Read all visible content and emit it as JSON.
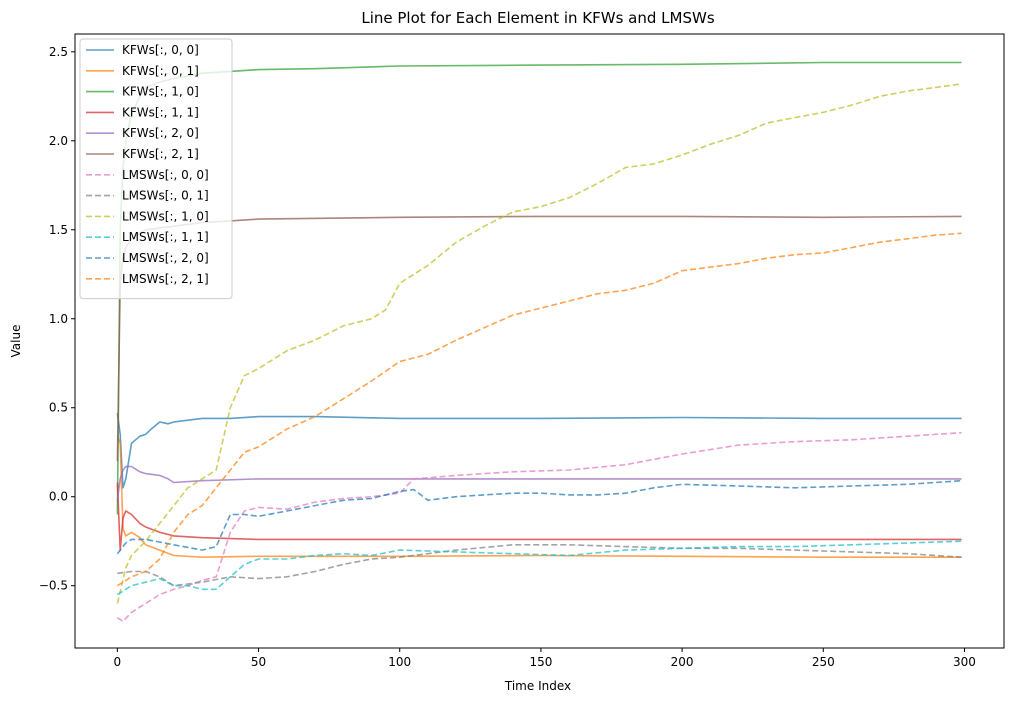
{
  "chart_data": {
    "type": "line",
    "title": "Line Plot for Each Element in KFWs and LMSWs",
    "xlabel": "Time Index",
    "ylabel": "Value",
    "xlim": [
      -15,
      314
    ],
    "ylim": [
      -0.85,
      2.6
    ],
    "xticks": [
      0,
      50,
      100,
      150,
      200,
      250,
      300
    ],
    "yticks": [
      -0.5,
      0.0,
      0.5,
      1.0,
      1.5,
      2.0,
      2.5
    ],
    "xtick_labels": [
      "0",
      "50",
      "100",
      "150",
      "200",
      "250",
      "300"
    ],
    "ytick_labels": [
      "−0.5",
      "0.0",
      "0.5",
      "1.0",
      "1.5",
      "2.0",
      "2.5"
    ],
    "legend_position": "upper-left",
    "grid": false,
    "series": [
      {
        "name": "KFWs[:, 0, 0]",
        "color": "#1f77b4",
        "style": "solid",
        "points": [
          [
            0,
            0.47
          ],
          [
            1,
            0.35
          ],
          [
            2,
            0.05
          ],
          [
            3,
            0.1
          ],
          [
            5,
            0.3
          ],
          [
            8,
            0.34
          ],
          [
            10,
            0.35
          ],
          [
            12,
            0.38
          ],
          [
            15,
            0.42
          ],
          [
            18,
            0.41
          ],
          [
            20,
            0.42
          ],
          [
            25,
            0.43
          ],
          [
            30,
            0.44
          ],
          [
            40,
            0.44
          ],
          [
            50,
            0.45
          ],
          [
            70,
            0.45
          ],
          [
            100,
            0.44
          ],
          [
            150,
            0.44
          ],
          [
            200,
            0.445
          ],
          [
            250,
            0.44
          ],
          [
            299,
            0.44
          ]
        ]
      },
      {
        "name": "KFWs[:, 0, 1]",
        "color": "#ff7f0e",
        "style": "solid",
        "points": [
          [
            0,
            0.34
          ],
          [
            1,
            0.3
          ],
          [
            2,
            -0.18
          ],
          [
            3,
            -0.22
          ],
          [
            5,
            -0.2
          ],
          [
            8,
            -0.23
          ],
          [
            10,
            -0.27
          ],
          [
            15,
            -0.3
          ],
          [
            20,
            -0.33
          ],
          [
            30,
            -0.34
          ],
          [
            50,
            -0.335
          ],
          [
            100,
            -0.335
          ],
          [
            150,
            -0.33
          ],
          [
            200,
            -0.335
          ],
          [
            250,
            -0.34
          ],
          [
            299,
            -0.34
          ]
        ]
      },
      {
        "name": "KFWs[:, 1, 0]",
        "color": "#2ca02c",
        "style": "solid",
        "points": [
          [
            0,
            -0.1
          ],
          [
            1,
            1.5
          ],
          [
            2,
            1.85
          ],
          [
            3,
            2.0
          ],
          [
            5,
            2.15
          ],
          [
            8,
            2.25
          ],
          [
            10,
            2.3
          ],
          [
            15,
            2.33
          ],
          [
            20,
            2.35
          ],
          [
            30,
            2.38
          ],
          [
            40,
            2.39
          ],
          [
            50,
            2.4
          ],
          [
            70,
            2.405
          ],
          [
            100,
            2.42
          ],
          [
            150,
            2.425
          ],
          [
            200,
            2.43
          ],
          [
            250,
            2.44
          ],
          [
            299,
            2.44
          ]
        ]
      },
      {
        "name": "KFWs[:, 1, 1]",
        "color": "#d62728",
        "style": "solid",
        "points": [
          [
            0,
            0.08
          ],
          [
            1,
            -0.3
          ],
          [
            2,
            -0.12
          ],
          [
            3,
            -0.08
          ],
          [
            5,
            -0.1
          ],
          [
            8,
            -0.15
          ],
          [
            10,
            -0.17
          ],
          [
            15,
            -0.2
          ],
          [
            20,
            -0.22
          ],
          [
            30,
            -0.23
          ],
          [
            50,
            -0.24
          ],
          [
            100,
            -0.24
          ],
          [
            150,
            -0.24
          ],
          [
            200,
            -0.24
          ],
          [
            250,
            -0.24
          ],
          [
            299,
            -0.24
          ]
        ]
      },
      {
        "name": "KFWs[:, 2, 0]",
        "color": "#9467bd",
        "style": "solid",
        "points": [
          [
            0,
            -0.02
          ],
          [
            1,
            0.1
          ],
          [
            2,
            0.15
          ],
          [
            3,
            0.17
          ],
          [
            5,
            0.17
          ],
          [
            8,
            0.14
          ],
          [
            10,
            0.13
          ],
          [
            15,
            0.12
          ],
          [
            18,
            0.1
          ],
          [
            20,
            0.08
          ],
          [
            30,
            0.09
          ],
          [
            50,
            0.1
          ],
          [
            100,
            0.1
          ],
          [
            150,
            0.1
          ],
          [
            200,
            0.1
          ],
          [
            250,
            0.1
          ],
          [
            299,
            0.1
          ]
        ]
      },
      {
        "name": "KFWs[:, 2, 1]",
        "color": "#8c564b",
        "style": "solid",
        "points": [
          [
            0,
            0.2
          ],
          [
            1,
            1.2
          ],
          [
            2,
            1.35
          ],
          [
            3,
            1.4
          ],
          [
            5,
            1.45
          ],
          [
            8,
            1.48
          ],
          [
            10,
            1.5
          ],
          [
            20,
            1.52
          ],
          [
            30,
            1.54
          ],
          [
            40,
            1.55
          ],
          [
            50,
            1.56
          ],
          [
            100,
            1.57
          ],
          [
            150,
            1.575
          ],
          [
            200,
            1.575
          ],
          [
            250,
            1.57
          ],
          [
            299,
            1.575
          ]
        ]
      },
      {
        "name": "LMSWs[:, 0, 0]",
        "color": "#e377c2",
        "style": "dashed",
        "points": [
          [
            0,
            -0.68
          ],
          [
            2,
            -0.7
          ],
          [
            5,
            -0.65
          ],
          [
            10,
            -0.6
          ],
          [
            15,
            -0.55
          ],
          [
            20,
            -0.52
          ],
          [
            25,
            -0.5
          ],
          [
            30,
            -0.47
          ],
          [
            35,
            -0.45
          ],
          [
            40,
            -0.2
          ],
          [
            45,
            -0.08
          ],
          [
            50,
            -0.06
          ],
          [
            60,
            -0.07
          ],
          [
            70,
            -0.03
          ],
          [
            80,
            -0.01
          ],
          [
            90,
            0.0
          ],
          [
            100,
            0.02
          ],
          [
            105,
            0.1
          ],
          [
            120,
            0.12
          ],
          [
            140,
            0.14
          ],
          [
            160,
            0.15
          ],
          [
            180,
            0.18
          ],
          [
            200,
            0.24
          ],
          [
            220,
            0.29
          ],
          [
            240,
            0.31
          ],
          [
            260,
            0.32
          ],
          [
            280,
            0.34
          ],
          [
            299,
            0.36
          ]
        ]
      },
      {
        "name": "LMSWs[:, 0, 1]",
        "color": "#7f7f7f",
        "style": "dashed",
        "points": [
          [
            0,
            -0.43
          ],
          [
            5,
            -0.42
          ],
          [
            10,
            -0.42
          ],
          [
            15,
            -0.45
          ],
          [
            20,
            -0.5
          ],
          [
            30,
            -0.48
          ],
          [
            40,
            -0.45
          ],
          [
            50,
            -0.46
          ],
          [
            60,
            -0.45
          ],
          [
            70,
            -0.42
          ],
          [
            80,
            -0.38
          ],
          [
            90,
            -0.35
          ],
          [
            100,
            -0.34
          ],
          [
            120,
            -0.3
          ],
          [
            140,
            -0.27
          ],
          [
            160,
            -0.27
          ],
          [
            180,
            -0.28
          ],
          [
            200,
            -0.29
          ],
          [
            220,
            -0.29
          ],
          [
            240,
            -0.3
          ],
          [
            260,
            -0.31
          ],
          [
            280,
            -0.32
          ],
          [
            299,
            -0.34
          ]
        ]
      },
      {
        "name": "LMSWs[:, 1, 0]",
        "color": "#bcbd22",
        "style": "dashed",
        "points": [
          [
            0,
            -0.6
          ],
          [
            3,
            -0.4
          ],
          [
            5,
            -0.33
          ],
          [
            10,
            -0.25
          ],
          [
            15,
            -0.15
          ],
          [
            20,
            -0.05
          ],
          [
            25,
            0.05
          ],
          [
            30,
            0.1
          ],
          [
            35,
            0.15
          ],
          [
            40,
            0.5
          ],
          [
            45,
            0.68
          ],
          [
            50,
            0.72
          ],
          [
            60,
            0.82
          ],
          [
            70,
            0.88
          ],
          [
            80,
            0.96
          ],
          [
            90,
            1.0
          ],
          [
            95,
            1.05
          ],
          [
            100,
            1.2
          ],
          [
            110,
            1.3
          ],
          [
            120,
            1.43
          ],
          [
            130,
            1.52
          ],
          [
            140,
            1.6
          ],
          [
            150,
            1.63
          ],
          [
            160,
            1.68
          ],
          [
            170,
            1.76
          ],
          [
            180,
            1.85
          ],
          [
            190,
            1.87
          ],
          [
            200,
            1.92
          ],
          [
            210,
            1.98
          ],
          [
            220,
            2.03
          ],
          [
            230,
            2.1
          ],
          [
            240,
            2.13
          ],
          [
            250,
            2.16
          ],
          [
            260,
            2.2
          ],
          [
            270,
            2.25
          ],
          [
            280,
            2.28
          ],
          [
            290,
            2.3
          ],
          [
            299,
            2.32
          ]
        ]
      },
      {
        "name": "LMSWs[:, 1, 1]",
        "color": "#17becf",
        "style": "dashed",
        "points": [
          [
            0,
            -0.55
          ],
          [
            3,
            -0.52
          ],
          [
            5,
            -0.5
          ],
          [
            10,
            -0.48
          ],
          [
            15,
            -0.46
          ],
          [
            20,
            -0.5
          ],
          [
            25,
            -0.5
          ],
          [
            30,
            -0.52
          ],
          [
            35,
            -0.52
          ],
          [
            40,
            -0.45
          ],
          [
            45,
            -0.38
          ],
          [
            50,
            -0.35
          ],
          [
            60,
            -0.35
          ],
          [
            70,
            -0.33
          ],
          [
            80,
            -0.32
          ],
          [
            90,
            -0.33
          ],
          [
            100,
            -0.3
          ],
          [
            120,
            -0.31
          ],
          [
            140,
            -0.32
          ],
          [
            160,
            -0.33
          ],
          [
            180,
            -0.3
          ],
          [
            200,
            -0.29
          ],
          [
            220,
            -0.28
          ],
          [
            240,
            -0.28
          ],
          [
            260,
            -0.27
          ],
          [
            280,
            -0.26
          ],
          [
            299,
            -0.25
          ]
        ]
      },
      {
        "name": "LMSWs[:, 2, 0]",
        "color": "#1f77b4",
        "style": "dashed",
        "points": [
          [
            0,
            -0.32
          ],
          [
            3,
            -0.26
          ],
          [
            5,
            -0.24
          ],
          [
            10,
            -0.24
          ],
          [
            20,
            -0.27
          ],
          [
            30,
            -0.3
          ],
          [
            35,
            -0.28
          ],
          [
            40,
            -0.1
          ],
          [
            45,
            -0.1
          ],
          [
            50,
            -0.11
          ],
          [
            60,
            -0.08
          ],
          [
            70,
            -0.05
          ],
          [
            80,
            -0.02
          ],
          [
            90,
            -0.01
          ],
          [
            100,
            0.03
          ],
          [
            105,
            0.04
          ],
          [
            110,
            -0.02
          ],
          [
            120,
            0.0
          ],
          [
            130,
            0.01
          ],
          [
            140,
            0.02
          ],
          [
            150,
            0.02
          ],
          [
            160,
            0.01
          ],
          [
            170,
            0.01
          ],
          [
            180,
            0.02
          ],
          [
            190,
            0.05
          ],
          [
            200,
            0.07
          ],
          [
            220,
            0.06
          ],
          [
            240,
            0.05
          ],
          [
            260,
            0.06
          ],
          [
            280,
            0.07
          ],
          [
            299,
            0.09
          ]
        ]
      },
      {
        "name": "LMSWs[:, 2, 1]",
        "color": "#ff7f0e",
        "style": "dashed",
        "points": [
          [
            0,
            -0.5
          ],
          [
            5,
            -0.45
          ],
          [
            10,
            -0.42
          ],
          [
            15,
            -0.35
          ],
          [
            20,
            -0.2
          ],
          [
            25,
            -0.1
          ],
          [
            30,
            -0.05
          ],
          [
            35,
            0.05
          ],
          [
            40,
            0.15
          ],
          [
            45,
            0.25
          ],
          [
            50,
            0.28
          ],
          [
            60,
            0.38
          ],
          [
            70,
            0.45
          ],
          [
            80,
            0.55
          ],
          [
            90,
            0.65
          ],
          [
            100,
            0.76
          ],
          [
            110,
            0.8
          ],
          [
            120,
            0.88
          ],
          [
            130,
            0.95
          ],
          [
            140,
            1.02
          ],
          [
            150,
            1.06
          ],
          [
            160,
            1.1
          ],
          [
            170,
            1.14
          ],
          [
            180,
            1.16
          ],
          [
            190,
            1.2
          ],
          [
            200,
            1.27
          ],
          [
            210,
            1.29
          ],
          [
            220,
            1.31
          ],
          [
            230,
            1.34
          ],
          [
            240,
            1.36
          ],
          [
            250,
            1.37
          ],
          [
            260,
            1.4
          ],
          [
            270,
            1.43
          ],
          [
            280,
            1.45
          ],
          [
            290,
            1.47
          ],
          [
            299,
            1.48
          ]
        ]
      }
    ]
  }
}
